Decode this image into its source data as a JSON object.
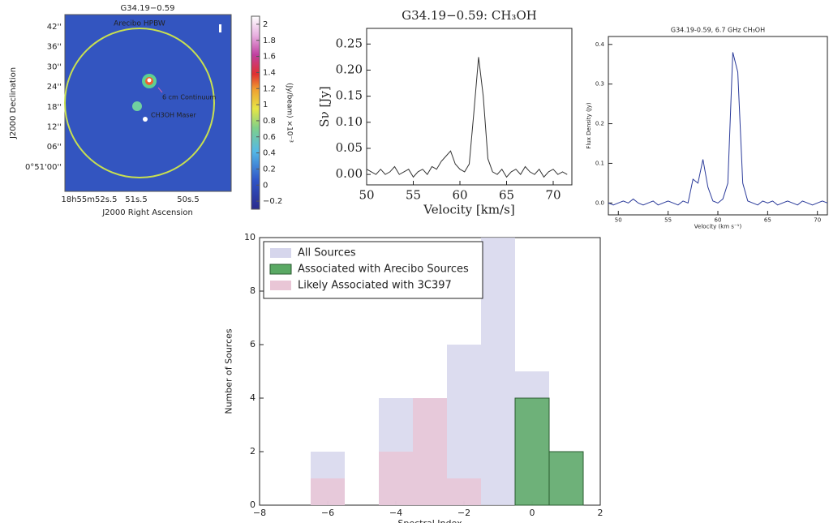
{
  "chart_data": [
    {
      "type": "image",
      "title": "G34.19−0.59",
      "xlabel": "J2000 Right Ascension",
      "ylabel": "J2000 Declination",
      "y_tick_labels": [
        "42''",
        "36''",
        "30''",
        "24''",
        "18''",
        "12''",
        "06''",
        "0°51'00''"
      ],
      "x_tick_labels": [
        "18h55m52s.5",
        "51s.5",
        "50s.5"
      ],
      "annotations": [
        "Arecibo HPBW",
        "6 cm Continuum",
        "CH3OH Maser"
      ],
      "colorbar_label": "(Jy/beam) ×10⁻³",
      "clim": [
        -0.3,
        2.1
      ],
      "cticks": [
        2,
        1.8,
        1.6,
        1.4,
        1.2,
        1,
        0.8,
        0.6,
        0.4,
        0.2,
        0,
        {
          "value": -0.2,
          "label": "−0.2"
        }
      ]
    },
    {
      "type": "line",
      "title": "G34.19−0.59: CH₃OH",
      "xlabel": "Velocity [km/s]",
      "ylabel": "Sν [Jy]",
      "color": "#333333",
      "x": [
        50,
        50.5,
        51,
        51.5,
        52,
        52.5,
        53,
        53.5,
        54,
        54.5,
        55,
        55.5,
        56,
        56.5,
        57,
        57.5,
        58,
        58.5,
        59,
        59.5,
        60,
        60.5,
        61,
        61.5,
        62,
        62.5,
        63,
        63.5,
        64,
        64.5,
        65,
        65.5,
        66,
        66.5,
        67,
        67.5,
        68,
        68.5,
        69,
        69.5,
        70,
        70.5,
        71,
        71.5
      ],
      "values": [
        0.01,
        0.005,
        0,
        0.01,
        0,
        0.005,
        0.015,
        0,
        0.005,
        0.01,
        -0.005,
        0.005,
        0.01,
        0,
        0.015,
        0.01,
        0.025,
        0.035,
        0.045,
        0.02,
        0.01,
        0.005,
        0.02,
        0.12,
        0.225,
        0.15,
        0.03,
        0.005,
        0,
        0.01,
        -0.005,
        0.005,
        0.01,
        0,
        0.015,
        0.005,
        0,
        0.01,
        -0.005,
        0.005,
        0.01,
        0,
        0.005,
        0
      ],
      "xlim": [
        50,
        72
      ],
      "ylim": [
        -0.02,
        0.28
      ],
      "xticks": [
        50,
        55,
        60,
        65,
        70
      ],
      "yticks": [
        {
          "value": 0,
          "label": "0.00"
        },
        {
          "value": 0.05,
          "label": "0.05"
        },
        {
          "value": 0.1,
          "label": "0.10"
        },
        {
          "value": 0.15,
          "label": "0.15"
        },
        {
          "value": 0.2,
          "label": "0.20"
        },
        {
          "value": 0.25,
          "label": "0.25"
        }
      ]
    },
    {
      "type": "line",
      "title": "G34.19-0.59, 6.7 GHz CH₃OH",
      "xlabel": "Velocity (km s⁻¹)",
      "ylabel": "Flux Density (Jy)",
      "color": "#2a3a9a",
      "x": [
        49,
        49.5,
        50,
        50.5,
        51,
        51.5,
        52,
        52.5,
        53,
        53.5,
        54,
        54.5,
        55,
        55.5,
        56,
        56.5,
        57,
        57.5,
        58,
        58.5,
        59,
        59.5,
        60,
        60.5,
        61,
        61.5,
        62,
        62.5,
        63,
        63.5,
        64,
        64.5,
        65,
        65.5,
        66,
        66.5,
        67,
        67.5,
        68,
        68.5,
        69,
        69.5,
        70,
        70.5,
        71
      ],
      "values": [
        0,
        -0.005,
        0,
        0.005,
        0,
        0.01,
        0,
        -0.005,
        0,
        0.005,
        -0.005,
        0,
        0.005,
        0,
        -0.005,
        0.005,
        0,
        0.06,
        0.05,
        0.11,
        0.04,
        0.005,
        0,
        0.01,
        0.05,
        0.38,
        0.33,
        0.05,
        0.005,
        0,
        -0.005,
        0.005,
        0,
        0.005,
        -0.005,
        0,
        0.005,
        0,
        -0.005,
        0.005,
        0,
        -0.005,
        0,
        0.005,
        0
      ],
      "xlim": [
        49,
        71
      ],
      "ylim": [
        -0.03,
        0.42
      ],
      "xticks": [
        50,
        55,
        60,
        65,
        70
      ],
      "yticks": [
        {
          "value": 0,
          "label": "0.0"
        },
        {
          "value": 0.1,
          "label": "0.1"
        },
        {
          "value": 0.2,
          "label": "0.2"
        },
        {
          "value": 0.3,
          "label": "0.3"
        },
        {
          "value": 0.4,
          "label": "0.4"
        }
      ]
    },
    {
      "type": "histogram",
      "xlabel": "Spectral Index",
      "ylabel": "Number of Sources",
      "legend": "upper left",
      "bins": [
        -6.5,
        -5.5,
        -4.5,
        -3.5,
        -2.5,
        -1.5,
        -0.5,
        0.5,
        1.5
      ],
      "series": [
        {
          "name": "All Sources",
          "color": "#d6d6ec",
          "values": [
            2,
            0,
            4,
            4,
            6,
            10,
            5,
            2
          ]
        },
        {
          "name": "Associated with Arecibo Sources",
          "color": "#5aa964",
          "values": [
            0,
            0,
            0,
            0,
            0,
            0,
            4,
            2
          ]
        },
        {
          "name": "Likely Associated with 3C397",
          "color": "#e9c6d6",
          "values": [
            1,
            0,
            2,
            4,
            1,
            0,
            0,
            0
          ]
        }
      ],
      "xlim": [
        -8,
        2
      ],
      "ylim": [
        0,
        10
      ],
      "xticks": [
        {
          "value": -8,
          "label": "−8"
        },
        {
          "value": -6,
          "label": "−6"
        },
        {
          "value": -4,
          "label": "−4"
        },
        {
          "value": -2,
          "label": "−2"
        },
        0,
        2
      ],
      "yticks": [
        0,
        2,
        4,
        6,
        8,
        10
      ]
    }
  ]
}
